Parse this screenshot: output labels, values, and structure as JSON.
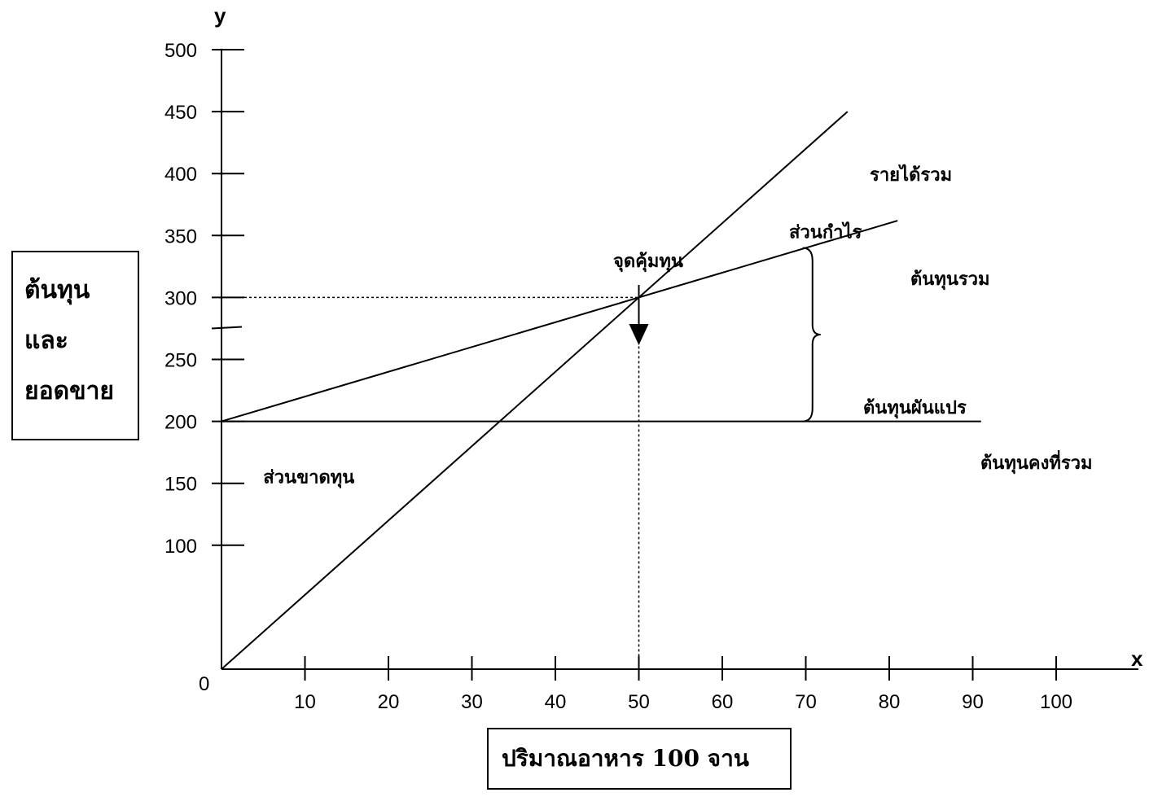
{
  "chart_data": {
    "type": "line",
    "xlabel": "ปริมาณอาหาร  100 จาน",
    "ylabel_lines": [
      "ต้นทุน",
      "และ",
      "ยอดขาย"
    ],
    "x_axis_letter": "x",
    "y_axis_letter": "y",
    "origin_label": "0",
    "xlim": [
      0,
      110
    ],
    "ylim": [
      0,
      500
    ],
    "x_ticks": [
      10,
      20,
      30,
      40,
      50,
      60,
      70,
      80,
      90,
      100
    ],
    "y_ticks": [
      100,
      150,
      200,
      250,
      300,
      350,
      400,
      450,
      500
    ],
    "series": [
      {
        "name": "รายได้รวม",
        "x": [
          0,
          75
        ],
        "y": [
          0,
          450
        ]
      },
      {
        "name": "ต้นทุนรวม",
        "x": [
          0,
          81
        ],
        "y": [
          200,
          362
        ]
      },
      {
        "name": "ต้นทุนคงที่รวม",
        "x": [
          0,
          91
        ],
        "y": [
          200,
          200
        ]
      }
    ],
    "break_even": {
      "label": "จุดคุ้มทุน",
      "x": 50,
      "y": 300
    },
    "brace": {
      "label": "ต้นทุนผันแปร",
      "x": 71,
      "y_from": 200,
      "y_to": 340
    },
    "annotations": [
      {
        "text": "ส่วนกำไร",
        "x": 68,
        "y": 348
      },
      {
        "text": "ส่วนขาดทุน",
        "x": 5,
        "y": 150
      }
    ],
    "grid": false
  }
}
